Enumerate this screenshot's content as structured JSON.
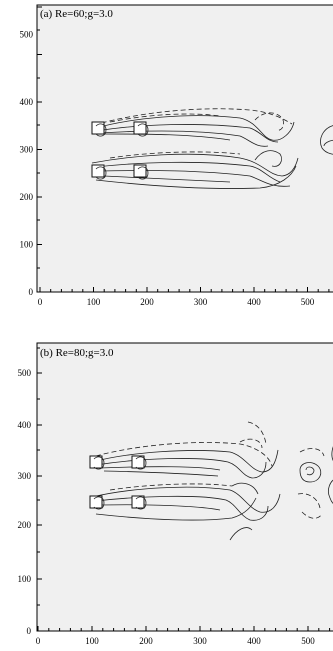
{
  "panels": [
    {
      "id": "a",
      "label": "(a) Re=60;g=3.0",
      "x_ticks": [
        "0",
        "100",
        "200",
        "300",
        "400",
        "500"
      ],
      "y_ticks": [
        "0",
        "100",
        "200",
        "300",
        "400",
        "500"
      ]
    },
    {
      "id": "b",
      "label": "(b) Re=80;g=3.0",
      "x_ticks": [
        "0",
        "100",
        "200",
        "300",
        "400",
        "500"
      ],
      "y_ticks": [
        "0",
        "100",
        "200",
        "300",
        "400",
        "500"
      ]
    }
  ],
  "colors": {
    "plot_background": "#f0f0f0",
    "contour_line": "#222222",
    "axis": "#000000"
  }
}
